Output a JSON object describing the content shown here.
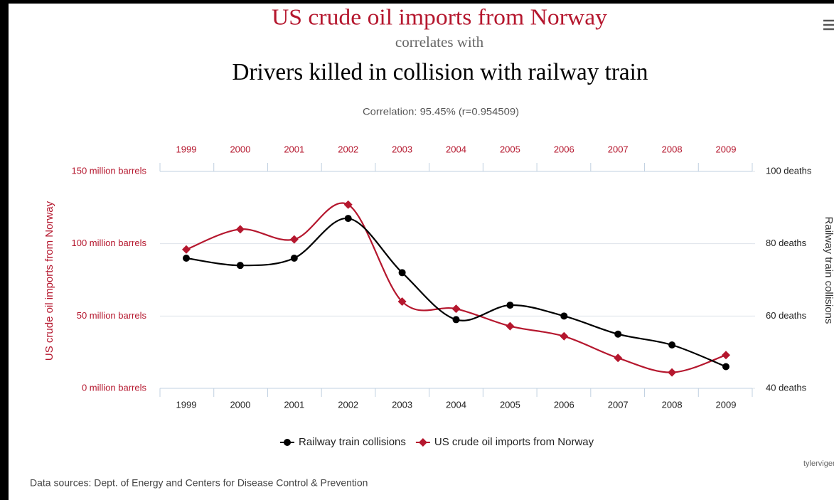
{
  "chart_data": {
    "type": "line",
    "title": "US crude oil imports from Norway",
    "subtitle": "correlates with",
    "title2": "Drivers killed in collision with railway train",
    "correlation": "Correlation: 95.45% (r=0.954509)",
    "categories": [
      "1999",
      "2000",
      "2001",
      "2002",
      "2003",
      "2004",
      "2005",
      "2006",
      "2007",
      "2008",
      "2009"
    ],
    "series": [
      {
        "name": "Railway train collisions",
        "color": "#000000",
        "axis": "y2",
        "marker": "circle",
        "values": [
          76,
          74,
          76,
          87,
          72,
          59,
          63,
          60,
          55,
          52,
          46
        ]
      },
      {
        "name": "US crude oil imports from Norway",
        "color": "#b5172e",
        "marker": "diamond",
        "values": [
          96,
          110,
          103,
          127,
          60,
          55,
          43,
          36,
          21,
          11,
          23
        ]
      }
    ],
    "ylabel": "US crude oil imports from Norway",
    "y2label": "Railway train collisions",
    "ylim": [
      0,
      150
    ],
    "yticks": [
      {
        "value": 0,
        "label": "0 million barrels"
      },
      {
        "value": 50,
        "label": "50 million barrels"
      },
      {
        "value": 100,
        "label": "100 million barrels"
      },
      {
        "value": 150,
        "label": "150 million barrels"
      }
    ],
    "y2lim": [
      40,
      100
    ],
    "y2ticks": [
      {
        "value": 40,
        "label": "40 deaths"
      },
      {
        "value": 60,
        "label": "60 deaths"
      },
      {
        "value": 80,
        "label": "80 deaths"
      },
      {
        "value": 100,
        "label": "100 deaths"
      }
    ],
    "grid": true,
    "legend": "bottom",
    "source": "Data sources: Dept. of Energy and Centers for Disease Control & Prevention",
    "credit": "tylervigen.co"
  }
}
